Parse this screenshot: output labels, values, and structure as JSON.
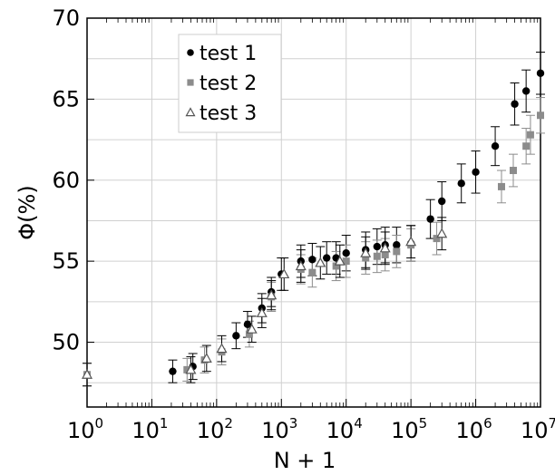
{
  "chart_data": {
    "type": "scatter",
    "title": "",
    "xlabel": "N + 1",
    "ylabel": "Φ(%)",
    "xscale": "log",
    "xlim": [
      1,
      10000000
    ],
    "ylim": [
      46,
      70
    ],
    "grid": true,
    "legend_position": "top-left",
    "x_ticks": [
      {
        "value": 1,
        "base": "10",
        "exp": "0"
      },
      {
        "value": 10,
        "base": "10",
        "exp": "1"
      },
      {
        "value": 100,
        "base": "10",
        "exp": "2"
      },
      {
        "value": 1000,
        "base": "10",
        "exp": "3"
      },
      {
        "value": 10000,
        "base": "10",
        "exp": "4"
      },
      {
        "value": 100000,
        "base": "10",
        "exp": "5"
      },
      {
        "value": 1000000,
        "base": "10",
        "exp": "6"
      },
      {
        "value": 10000000,
        "base": "10",
        "exp": "7"
      }
    ],
    "y_ticks": [
      {
        "value": 50,
        "label": "50"
      },
      {
        "value": 55,
        "label": "55"
      },
      {
        "value": 60,
        "label": "60"
      },
      {
        "value": 65,
        "label": "65"
      },
      {
        "value": 70,
        "label": "70"
      }
    ],
    "series": [
      {
        "name": "test 1",
        "marker": "circle",
        "color": "#000000",
        "errorbar_color": "#000000",
        "points": [
          {
            "x": 21,
            "y": 48.2,
            "err": 0.7
          },
          {
            "x": 43,
            "y": 48.5,
            "err": 0.8
          },
          {
            "x": 200,
            "y": 50.4,
            "err": 0.8
          },
          {
            "x": 300,
            "y": 51.1,
            "err": 0.8
          },
          {
            "x": 500,
            "y": 52.1,
            "err": 0.9
          },
          {
            "x": 700,
            "y": 53.1,
            "err": 0.9
          },
          {
            "x": 1000,
            "y": 54.2,
            "err": 1.0
          },
          {
            "x": 2000,
            "y": 55.0,
            "err": 1.0
          },
          {
            "x": 3000,
            "y": 55.1,
            "err": 1.0
          },
          {
            "x": 5000,
            "y": 55.2,
            "err": 1.0
          },
          {
            "x": 7000,
            "y": 55.2,
            "err": 1.0
          },
          {
            "x": 10000,
            "y": 55.5,
            "err": 1.1
          },
          {
            "x": 20000,
            "y": 55.7,
            "err": 1.1
          },
          {
            "x": 30000,
            "y": 55.9,
            "err": 1.1
          },
          {
            "x": 40000,
            "y": 56.0,
            "err": 1.1
          },
          {
            "x": 60000,
            "y": 56.0,
            "err": 1.1
          },
          {
            "x": 100000,
            "y": 56.1,
            "err": 1.1
          },
          {
            "x": 200000,
            "y": 57.6,
            "err": 1.2
          },
          {
            "x": 300000,
            "y": 58.7,
            "err": 1.2
          },
          {
            "x": 600000,
            "y": 59.8,
            "err": 1.2
          },
          {
            "x": 1000000,
            "y": 60.5,
            "err": 1.3
          },
          {
            "x": 2000000,
            "y": 62.1,
            "err": 1.2
          },
          {
            "x": 4000000,
            "y": 64.7,
            "err": 1.3
          },
          {
            "x": 6000000,
            "y": 65.5,
            "err": 1.3
          },
          {
            "x": 10000000,
            "y": 66.6,
            "err": 1.3
          }
        ]
      },
      {
        "name": "test 2",
        "marker": "square",
        "color": "#8c8c8c",
        "errorbar_color": "#8c8c8c",
        "points": [
          {
            "x": 1,
            "y": 48.0,
            "err": 0.7
          },
          {
            "x": 35,
            "y": 48.3,
            "err": 0.7
          },
          {
            "x": 65,
            "y": 48.9,
            "err": 0.8
          },
          {
            "x": 120,
            "y": 49.4,
            "err": 0.8
          },
          {
            "x": 320,
            "y": 50.5,
            "err": 0.8
          },
          {
            "x": 700,
            "y": 52.8,
            "err": 0.9
          },
          {
            "x": 2000,
            "y": 54.5,
            "err": 0.9
          },
          {
            "x": 3000,
            "y": 54.3,
            "err": 0.9
          },
          {
            "x": 7000,
            "y": 54.7,
            "err": 0.9
          },
          {
            "x": 10000,
            "y": 55.0,
            "err": 1.0
          },
          {
            "x": 20000,
            "y": 55.2,
            "err": 1.0
          },
          {
            "x": 30000,
            "y": 55.3,
            "err": 1.0
          },
          {
            "x": 40000,
            "y": 55.4,
            "err": 1.0
          },
          {
            "x": 60000,
            "y": 55.6,
            "err": 1.0
          },
          {
            "x": 100000,
            "y": 56.0,
            "err": 1.0
          },
          {
            "x": 250000,
            "y": 56.4,
            "err": 1.0
          },
          {
            "x": 2500000,
            "y": 59.6,
            "err": 1.0
          },
          {
            "x": 3800000,
            "y": 60.6,
            "err": 1.0
          },
          {
            "x": 6000000,
            "y": 62.1,
            "err": 1.1
          },
          {
            "x": 7000000,
            "y": 62.8,
            "err": 1.2
          },
          {
            "x": 10000000,
            "y": 64.0,
            "err": 1.1
          }
        ]
      },
      {
        "name": "test 3",
        "marker": "triangle",
        "color": "#555555",
        "errorbar_color": "#000000",
        "points": [
          {
            "x": 1,
            "y": 48.0,
            "err": 0.7
          },
          {
            "x": 40,
            "y": 48.3,
            "err": 0.8
          },
          {
            "x": 70,
            "y": 49.0,
            "err": 0.8
          },
          {
            "x": 120,
            "y": 49.6,
            "err": 0.8
          },
          {
            "x": 350,
            "y": 50.8,
            "err": 0.8
          },
          {
            "x": 500,
            "y": 51.8,
            "err": 0.9
          },
          {
            "x": 700,
            "y": 52.9,
            "err": 0.9
          },
          {
            "x": 1100,
            "y": 54.2,
            "err": 1.0
          },
          {
            "x": 2000,
            "y": 54.7,
            "err": 1.0
          },
          {
            "x": 4000,
            "y": 54.9,
            "err": 1.0
          },
          {
            "x": 8000,
            "y": 55.0,
            "err": 1.0
          },
          {
            "x": 20000,
            "y": 55.5,
            "err": 1.0
          },
          {
            "x": 40000,
            "y": 55.8,
            "err": 1.0
          },
          {
            "x": 100000,
            "y": 56.2,
            "err": 1.0
          },
          {
            "x": 300000,
            "y": 56.7,
            "err": 1.0
          }
        ]
      }
    ]
  }
}
